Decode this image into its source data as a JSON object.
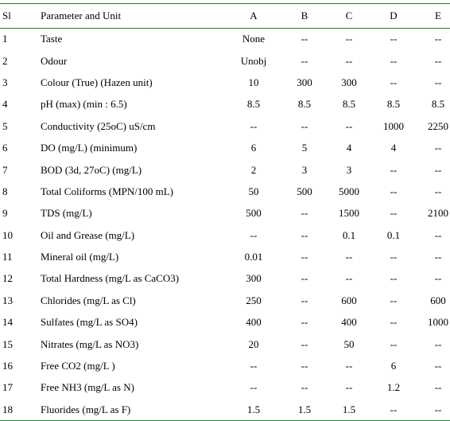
{
  "header": {
    "sl": "Sl",
    "parameter": "Parameter and Unit",
    "a": "A",
    "b": "B",
    "c": "C",
    "d": "D",
    "e": "E"
  },
  "rows": [
    {
      "sl": "1",
      "parameter": "Taste",
      "a": "None",
      "b": "--",
      "c": "--",
      "d": "--",
      "e": "--"
    },
    {
      "sl": "2",
      "parameter": "Odour",
      "a": "Unobj",
      "b": "--",
      "c": "--",
      "d": "--",
      "e": "--"
    },
    {
      "sl": "3",
      "parameter": "Colour (True) (Hazen unit)",
      "a": "10",
      "b": "300",
      "c": "300",
      "d": "--",
      "e": "--"
    },
    {
      "sl": "4",
      "parameter": "pH (max) (min : 6.5)",
      "a": "8.5",
      "b": "8.5",
      "c": "8.5",
      "d": "8.5",
      "e": "8.5"
    },
    {
      "sl": "5",
      "parameter": "Conductivity (25oC) uS/cm",
      "a": "--",
      "b": "--",
      "c": "--",
      "d": "1000",
      "e": "2250"
    },
    {
      "sl": "6",
      "parameter": "DO (mg/L) (minimum)",
      "a": "6",
      "b": "5",
      "c": "4",
      "d": "4",
      "e": "--"
    },
    {
      "sl": "7",
      "parameter": "BOD (3d, 27oC) (mg/L)",
      "a": "2",
      "b": "3",
      "c": "3",
      "d": "--",
      "e": "--"
    },
    {
      "sl": "8",
      "parameter": "Total Coliforms (MPN/100 mL)",
      "a": "50",
      "b": "500",
      "c": "5000",
      "d": "--",
      "e": "--"
    },
    {
      "sl": "9",
      "parameter": "TDS (mg/L)",
      "a": "500",
      "b": "--",
      "c": "1500",
      "d": "--",
      "e": "2100"
    },
    {
      "sl": "10",
      "parameter": "Oil and Grease (mg/L)",
      "a": "--",
      "b": "--",
      "c": "0.1",
      "d": "0.1",
      "e": "--"
    },
    {
      "sl": "11",
      "parameter": "Mineral oil (mg/L)",
      "a": "0.01",
      "b": "--",
      "c": "--",
      "d": "--",
      "e": "--"
    },
    {
      "sl": "12",
      "parameter": "Total Hardness (mg/L as CaCO3)",
      "a": "300",
      "b": "--",
      "c": "--",
      "d": "--",
      "e": "--"
    },
    {
      "sl": "13",
      "parameter": "Chlorides (mg/L as Cl)",
      "a": "250",
      "b": "--",
      "c": "600",
      "d": "--",
      "e": "600"
    },
    {
      "sl": "14",
      "parameter": "Sulfates (mg/L as SO4)",
      "a": "400",
      "b": "--",
      "c": "400",
      "d": "--",
      "e": "1000"
    },
    {
      "sl": "15",
      "parameter": "Nitrates (mg/L as NO3)",
      "a": "20",
      "b": "--",
      "c": "50",
      "d": "--",
      "e": "--"
    },
    {
      "sl": "16",
      "parameter": "Free CO2 (mg/L )",
      "a": "--",
      "b": "--",
      "c": "--",
      "d": "6",
      "e": "--"
    },
    {
      "sl": "17",
      "parameter": "Free NH3 (mg/L as N)",
      "a": "--",
      "b": "--",
      "c": "--",
      "d": "1.2",
      "e": "--"
    },
    {
      "sl": "18",
      "parameter": "Fluorides (mg/L as F)",
      "a": "1.5",
      "b": "1.5",
      "c": "1.5",
      "d": "--",
      "e": "--"
    }
  ],
  "colors": {
    "rule": "#2f7d32"
  }
}
